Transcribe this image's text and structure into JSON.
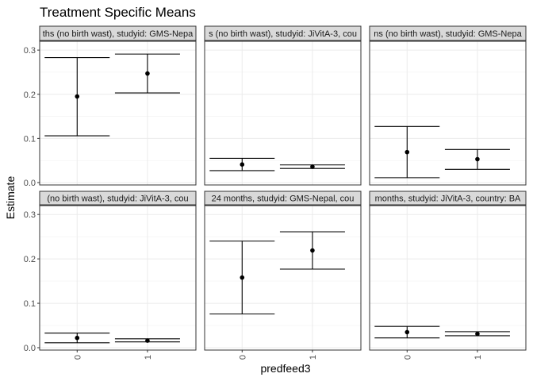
{
  "chart_data": {
    "type": "errorbar",
    "title": "Treatment Specific Means",
    "xlabel": "predfeed3",
    "ylabel": "Estimate",
    "categories": [
      "0",
      "1"
    ],
    "ylim": [
      0,
      0.32
    ],
    "yticks": [
      0.0,
      0.1,
      0.2,
      0.3
    ],
    "ytick_labels": [
      "0.0",
      "0.1",
      "0.2",
      "0.3"
    ],
    "grid": true,
    "facets": [
      {
        "strip": "ths (no birth wast), studyid: GMS-Nepa",
        "points": [
          {
            "x": "0",
            "y": 0.195,
            "lower": 0.106,
            "upper": 0.283
          },
          {
            "x": "1",
            "y": 0.247,
            "lower": 0.203,
            "upper": 0.291
          }
        ]
      },
      {
        "strip": "s (no birth wast), studyid: JiVitA-3, cou",
        "points": [
          {
            "x": "0",
            "y": 0.041,
            "lower": 0.027,
            "upper": 0.055
          },
          {
            "x": "1",
            "y": 0.036,
            "lower": 0.032,
            "upper": 0.04
          }
        ]
      },
      {
        "strip": "ns (no birth wast), studyid: GMS-Nepa",
        "points": [
          {
            "x": "0",
            "y": 0.069,
            "lower": 0.011,
            "upper": 0.127
          },
          {
            "x": "1",
            "y": 0.053,
            "lower": 0.03,
            "upper": 0.075
          }
        ]
      },
      {
        "strip": "(no birth wast), studyid: JiVitA-3, cou",
        "points": [
          {
            "x": "0",
            "y": 0.022,
            "lower": 0.011,
            "upper": 0.033
          },
          {
            "x": "1",
            "y": 0.016,
            "lower": 0.013,
            "upper": 0.02
          }
        ]
      },
      {
        "strip": "24 months, studyid: GMS-Nepal, cou",
        "points": [
          {
            "x": "0",
            "y": 0.158,
            "lower": 0.076,
            "upper": 0.24
          },
          {
            "x": "1",
            "y": 0.219,
            "lower": 0.177,
            "upper": 0.261
          }
        ]
      },
      {
        "strip": "months, studyid: JiVitA-3, country: BA",
        "points": [
          {
            "x": "0",
            "y": 0.035,
            "lower": 0.022,
            "upper": 0.048
          },
          {
            "x": "1",
            "y": 0.031,
            "lower": 0.027,
            "upper": 0.036
          }
        ]
      }
    ]
  }
}
